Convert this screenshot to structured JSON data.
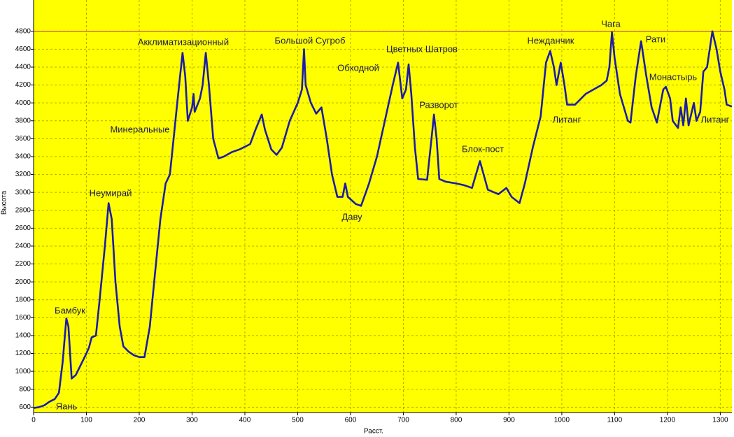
{
  "chart_data": {
    "type": "line",
    "xlabel": "Расст.",
    "ylabel": "Высота",
    "xlim": [
      0,
      1322
    ],
    "ylim": [
      540,
      5150
    ],
    "xticks": [
      0,
      100,
      200,
      300,
      400,
      500,
      600,
      700,
      800,
      900,
      1000,
      1100,
      1200,
      1300
    ],
    "yticks": [
      600,
      800,
      1000,
      1200,
      1400,
      1600,
      1800,
      2000,
      2200,
      2400,
      2600,
      2800,
      3000,
      3200,
      3400,
      3600,
      3800,
      4000,
      4200,
      4400,
      4600,
      4800
    ],
    "grid": true,
    "background": "#ffff00",
    "reference_line": {
      "value": 4800,
      "color": "#c04848"
    },
    "annotations": [
      "Бамбук",
      "Яань",
      "Неумирай",
      "Минеральные",
      "Акклиматизационный",
      "Большой Сугроб",
      "Обходной",
      "Даву",
      "Цветных Шатров",
      "Разворот",
      "Блок-пост",
      "Нежданчик",
      "Литанг",
      "Чага",
      "Рати",
      "Монастырь",
      "Литанг"
    ],
    "series": [
      {
        "color": "#1c1ca8",
        "x": [
          0,
          10,
          20,
          30,
          40,
          48,
          55,
          62,
          66,
          72,
          80,
          90,
          100,
          105,
          110,
          118,
          125,
          135,
          142,
          148,
          155,
          163,
          170,
          180,
          190,
          200,
          210,
          220,
          230,
          240,
          250,
          258,
          265,
          272,
          282,
          287,
          292,
          300,
          303,
          305,
          315,
          320,
          326,
          332,
          340,
          350,
          360,
          375,
          390,
          410,
          420,
          432,
          438,
          450,
          460,
          470,
          485,
          500,
          508,
          512,
          515,
          525,
          535,
          545,
          555,
          565,
          575,
          585,
          590,
          595,
          610,
          620,
          635,
          650,
          665,
          680,
          690,
          698,
          705,
          710,
          715,
          722,
          728,
          745,
          755,
          758,
          763,
          768,
          780,
          800,
          815,
          830,
          840,
          845,
          852,
          860,
          880,
          895,
          905,
          920,
          930,
          945,
          960,
          970,
          978,
          985,
          990,
          998,
          1005,
          1010,
          1025,
          1045,
          1060,
          1075,
          1085,
          1090,
          1095,
          1100,
          1110,
          1125,
          1130,
          1140,
          1150,
          1160,
          1170,
          1180,
          1192,
          1197,
          1205,
          1210,
          1220,
          1225,
          1230,
          1235,
          1240,
          1250,
          1255,
          1262,
          1268,
          1275,
          1285,
          1293,
          1300,
          1308,
          1312,
          1322
        ],
        "values": [
          590,
          600,
          620,
          660,
          690,
          760,
          1100,
          1590,
          1500,
          920,
          960,
          1080,
          1200,
          1270,
          1380,
          1400,
          1800,
          2400,
          2880,
          2700,
          2000,
          1500,
          1280,
          1220,
          1180,
          1160,
          1160,
          1500,
          2100,
          2700,
          3100,
          3200,
          3600,
          4000,
          4560,
          4300,
          3800,
          3950,
          4100,
          3900,
          4050,
          4200,
          4560,
          4200,
          3600,
          3380,
          3400,
          3450,
          3480,
          3540,
          3700,
          3870,
          3700,
          3480,
          3420,
          3500,
          3800,
          4000,
          4150,
          4600,
          4200,
          4000,
          3880,
          3950,
          3600,
          3200,
          2950,
          2950,
          3100,
          2950,
          2870,
          2850,
          3100,
          3400,
          3800,
          4200,
          4450,
          4050,
          4150,
          4430,
          4100,
          3500,
          3150,
          3140,
          3700,
          3870,
          3600,
          3150,
          3120,
          3100,
          3080,
          3050,
          3250,
          3350,
          3200,
          3030,
          2980,
          3050,
          2950,
          2880,
          3100,
          3500,
          3850,
          4450,
          4580,
          4400,
          4200,
          4450,
          4200,
          3980,
          3980,
          4100,
          4150,
          4200,
          4250,
          4400,
          4790,
          4500,
          4100,
          3800,
          3780,
          4300,
          4690,
          4300,
          3950,
          3780,
          4150,
          4180,
          4050,
          3800,
          3720,
          3950,
          3750,
          4050,
          3750,
          4000,
          3800,
          3900,
          4350,
          4400,
          4800,
          4600,
          4350,
          4150,
          3980,
          3960
        ]
      }
    ]
  }
}
